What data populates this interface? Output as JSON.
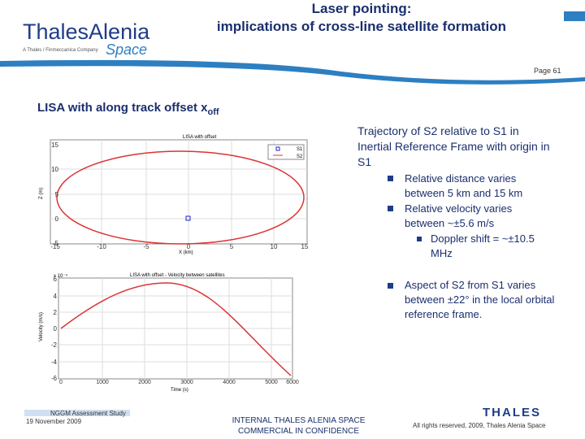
{
  "header": {
    "title_line1": "Laser pointing:",
    "title_line2": "implications of cross-line satellite formation",
    "logo_main": "ThalesAlenia",
    "logo_sub": "A Thales / Finmeccanica Company",
    "logo_space": "Space",
    "page": "Page 61"
  },
  "section": {
    "title": "LISA with along track offset x",
    "subscript": "off"
  },
  "plot1": {
    "title": "LISA with offset",
    "legend": [
      "S1",
      "S2"
    ],
    "xlabel": "X (km)",
    "ylabel": "Z (m)",
    "xticks": [
      "-15",
      "-10",
      "-5",
      "0",
      "5",
      "10",
      "15"
    ],
    "yticks": [
      "15",
      "10",
      "5",
      "0",
      "-5"
    ]
  },
  "plot2": {
    "title": "LISA with offset - Velocity between satellites",
    "exponent": "x 10⁻⁴",
    "xlabel": "Time (s)",
    "ylabel": "Velocity (m/s)",
    "xticks": [
      "0",
      "1000",
      "2000",
      "3000",
      "4000",
      "5000",
      "6000"
    ],
    "yticks": [
      "6",
      "4",
      "2",
      "0",
      "-2",
      "-4",
      "-6"
    ]
  },
  "content": {
    "heading": "Trajectory of S2 relative to S1 in Inertial Reference Frame with origin in S1",
    "bullets": [
      "Relative distance varies between 5 km and 15 km",
      "Relative velocity varies between ~±5.6 m/s"
    ],
    "sub_bullet": "Doppler shift = ~±10.5 MHz",
    "last_bullet": "Aspect of S2 from S1 varies between ±22° in the local orbital reference frame."
  },
  "footer": {
    "study": "NGGM Assessment Study",
    "date": "19 November 2009",
    "internal": "INTERNAL THALES ALENIA SPACE",
    "confidential": "COMMERCIAL IN CONFIDENCE",
    "rights": "All rights reserved, 2009, Thales Alenia Space",
    "thales": "THALES"
  }
}
